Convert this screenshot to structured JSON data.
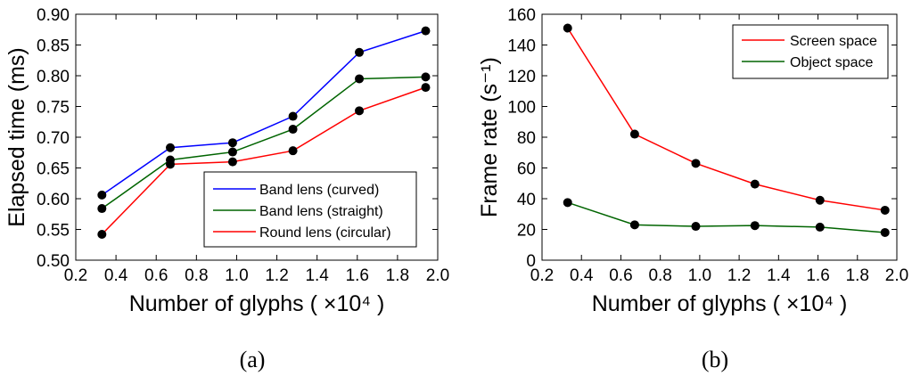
{
  "chart_data": [
    {
      "type": "line",
      "caption": "(a)",
      "xlabel": "Number of glyphs ( ×10⁴ )",
      "ylabel": "Elapsed time (ms)",
      "xlim": [
        0.2,
        2.0
      ],
      "ylim": [
        0.5,
        0.9
      ],
      "xticks": [
        "0.2",
        "0.4",
        "0.6",
        "0.8",
        "1.0",
        "1.2",
        "1.4",
        "1.6",
        "1.8",
        "2.0"
      ],
      "yticks": [
        "0.50",
        "0.55",
        "0.60",
        "0.65",
        "0.70",
        "0.75",
        "0.80",
        "0.85",
        "0.90"
      ],
      "legend_position": "lower-right",
      "x": [
        0.33,
        0.67,
        0.98,
        1.28,
        1.61,
        1.94
      ],
      "series": [
        {
          "name": "Band lens (curved)",
          "color": "#0000ff",
          "values": [
            0.606,
            0.683,
            0.691,
            0.734,
            0.838,
            0.873
          ]
        },
        {
          "name": "Band lens (straight)",
          "color": "#006400",
          "values": [
            0.584,
            0.663,
            0.676,
            0.713,
            0.795,
            0.798
          ]
        },
        {
          "name": "Round lens (circular)",
          "color": "#ff0000",
          "values": [
            0.542,
            0.656,
            0.66,
            0.678,
            0.743,
            0.781
          ]
        }
      ]
    },
    {
      "type": "line",
      "caption": "(b)",
      "xlabel": "Number of glyphs ( ×10⁴ )",
      "ylabel": "Frame rate (s⁻¹)",
      "xlim": [
        0.2,
        2.0
      ],
      "ylim": [
        0,
        160
      ],
      "xticks": [
        "0.2",
        "0.4",
        "0.6",
        "0.8",
        "1.0",
        "1.2",
        "1.4",
        "1.6",
        "1.8",
        "2.0"
      ],
      "yticks": [
        "0",
        "20",
        "40",
        "60",
        "80",
        "100",
        "120",
        "140",
        "160"
      ],
      "legend_position": "top-right",
      "x": [
        0.33,
        0.67,
        0.98,
        1.28,
        1.61,
        1.94
      ],
      "series": [
        {
          "name": "Screen space",
          "color": "#ff0000",
          "values": [
            151,
            82,
            63,
            49.5,
            39,
            32.5
          ]
        },
        {
          "name": "Object space",
          "color": "#006400",
          "values": [
            37.5,
            23,
            22,
            22.5,
            21.5,
            18
          ]
        }
      ]
    }
  ]
}
